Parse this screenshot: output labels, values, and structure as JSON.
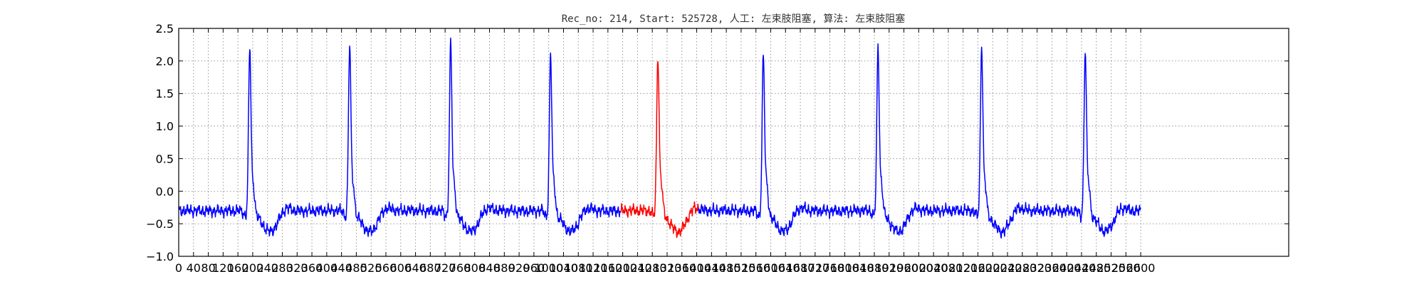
{
  "chart_data": {
    "type": "line",
    "title": "Rec_no: 214, Start: 525728, 人工: 左束肢阻塞, 算法: 左束肢阻塞",
    "xlabel": "",
    "ylabel": "",
    "xlim": [
      0,
      3000
    ],
    "ylim": [
      -1.0,
      2.5
    ],
    "grid": true,
    "yticks": [
      -1.0,
      -0.5,
      0.0,
      0.5,
      1.0,
      1.5,
      2.0,
      2.5
    ],
    "ytick_labels": [
      "−1.0",
      "−0.5",
      "0.0",
      "0.5",
      "1.0",
      "1.5",
      "2.0",
      "2.5"
    ],
    "xticks": [
      0,
      40,
      80,
      120,
      160,
      200,
      240,
      280,
      320,
      360,
      400,
      440,
      480,
      520,
      560,
      600,
      640,
      680,
      720,
      760,
      800,
      840,
      880,
      920,
      960,
      1000,
      1040,
      1080,
      1120,
      1160,
      1200,
      1240,
      1280,
      1320,
      1360,
      1400,
      1440,
      1480,
      1520,
      1560,
      1600,
      1640,
      1680,
      1720,
      1760,
      1800,
      1840,
      1880,
      1920,
      1960,
      2000,
      2040,
      2080,
      2120,
      2160,
      2200,
      2240,
      2280,
      2320,
      2360,
      2400,
      2440,
      2480,
      2520,
      2560,
      2600
    ],
    "xtick_labels": [
      "0",
      "40",
      "80",
      "120",
      "160",
      "200",
      "240",
      "280",
      "320",
      "360",
      "400",
      "440",
      "480",
      "520",
      "560",
      "600",
      "640",
      "680",
      "720",
      "760",
      "800",
      "840",
      "880",
      "920",
      "960",
      "1000",
      "1040",
      "1080",
      "1120",
      "1160",
      "1200",
      "1240",
      "1280",
      "1320",
      "1360",
      "1400",
      "1440",
      "1480",
      "1520",
      "1560",
      "1600",
      "1640",
      "1680",
      "1720",
      "1760",
      "1800",
      "1840",
      "1880",
      "1920",
      "1960",
      "2000",
      "2040",
      "2080",
      "2120",
      "2160",
      "2200",
      "2240",
      "2280",
      "2320",
      "2360",
      "2400",
      "2440",
      "2480",
      "2520",
      "2560",
      "2600"
    ],
    "signal_range": [
      0,
      2600
    ],
    "beat_peaks": [
      {
        "x": 192,
        "value": 2.18
      },
      {
        "x": 462,
        "value": 2.22
      },
      {
        "x": 735,
        "value": 2.25
      },
      {
        "x": 1005,
        "value": 2.08
      },
      {
        "x": 1295,
        "value": 2.06
      },
      {
        "x": 1580,
        "value": 2.06
      },
      {
        "x": 1890,
        "value": 2.18
      },
      {
        "x": 2170,
        "value": 2.22
      },
      {
        "x": 2450,
        "value": 2.13
      }
    ],
    "baseline": -0.3,
    "series": [
      {
        "color": "#0000ff",
        "segments": [
          [
            0,
            1195
          ],
          [
            1405,
            2600
          ]
        ]
      },
      {
        "color": "#ff0000",
        "segments": [
          [
            1195,
            1405
          ]
        ]
      }
    ]
  }
}
